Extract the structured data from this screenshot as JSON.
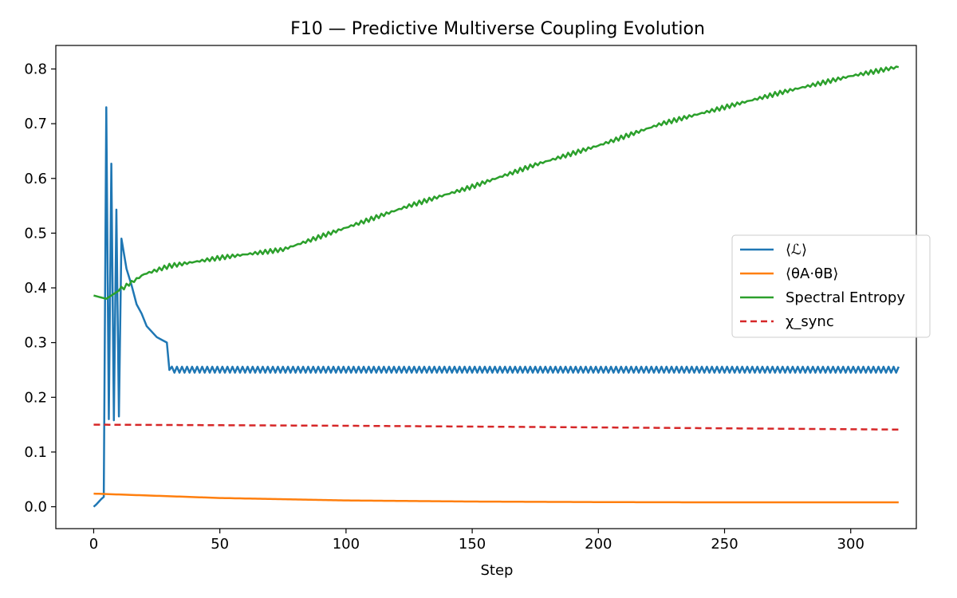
{
  "chart_data": {
    "type": "line",
    "title": "F10 — Predictive Multiverse Coupling Evolution",
    "xlabel": "Step",
    "ylabel": "",
    "xlim": [
      -15,
      326
    ],
    "ylim": [
      -0.04,
      0.843
    ],
    "xticks": [
      0,
      50,
      100,
      150,
      200,
      250,
      300
    ],
    "xtick_labels": [
      "0",
      "50",
      "100",
      "150",
      "200",
      "250",
      "300"
    ],
    "yticks": [
      0.0,
      0.1,
      0.2,
      0.3,
      0.4,
      0.5,
      0.6,
      0.7,
      0.8
    ],
    "ytick_labels": [
      "0.0",
      "0.1",
      "0.2",
      "0.3",
      "0.4",
      "0.5",
      "0.6",
      "0.7",
      "0.8"
    ],
    "grid": false,
    "legend_position": "center-right",
    "steps": {
      "start": 0,
      "end": 319,
      "step": 1
    },
    "series": [
      {
        "name": "⟨ℒ⟩",
        "color": "#1f77b4",
        "style": "solid",
        "description": "Rises from 0 to ~0.02 over steps 0-4, spikes to 0.73 at step 5, then decaying oscillation around ~0.25 until step ~30, then small steady oscillation between 0.245 and 0.256",
        "keypoints": [
          [
            0,
            0.0
          ],
          [
            1,
            0.004
          ],
          [
            2,
            0.009
          ],
          [
            3,
            0.014
          ],
          [
            4,
            0.018
          ],
          [
            5,
            0.73
          ],
          [
            6,
            0.16
          ],
          [
            7,
            0.627
          ],
          [
            8,
            0.158
          ],
          [
            9,
            0.543
          ],
          [
            10,
            0.165
          ],
          [
            11,
            0.49
          ],
          [
            13,
            0.435
          ],
          [
            15,
            0.405
          ],
          [
            17,
            0.37
          ],
          [
            19,
            0.353
          ],
          [
            21,
            0.33
          ],
          [
            23,
            0.32
          ],
          [
            25,
            0.31
          ],
          [
            27,
            0.305
          ],
          [
            29,
            0.3
          ],
          [
            30,
            0.25
          ]
        ],
        "settled_low": 0.245,
        "settled_high": 0.256
      },
      {
        "name": "⟨θA·θB⟩",
        "color": "#ff7f0e",
        "style": "solid",
        "keypoints": [
          [
            0,
            0.024
          ],
          [
            50,
            0.016
          ],
          [
            100,
            0.0115
          ],
          [
            150,
            0.0095
          ],
          [
            200,
            0.0085
          ],
          [
            250,
            0.008
          ],
          [
            319,
            0.008
          ]
        ]
      },
      {
        "name": "Spectral Entropy",
        "color": "#2ca02c",
        "style": "solid",
        "keypoints": [
          [
            0,
            0.386
          ],
          [
            5,
            0.38
          ],
          [
            10,
            0.395
          ],
          [
            20,
            0.425
          ],
          [
            30,
            0.44
          ],
          [
            50,
            0.455
          ],
          [
            75,
            0.47
          ],
          [
            100,
            0.51
          ],
          [
            125,
            0.55
          ],
          [
            150,
            0.585
          ],
          [
            175,
            0.625
          ],
          [
            200,
            0.66
          ],
          [
            225,
            0.7
          ],
          [
            250,
            0.73
          ],
          [
            275,
            0.76
          ],
          [
            300,
            0.787
          ],
          [
            319,
            0.804
          ]
        ],
        "ripple_amplitude": 0.004
      },
      {
        "name": "χ_sync",
        "color": "#d62728",
        "style": "dashed",
        "keypoints": [
          [
            0,
            0.15
          ],
          [
            100,
            0.148
          ],
          [
            200,
            0.145
          ],
          [
            319,
            0.141
          ]
        ]
      }
    ]
  }
}
